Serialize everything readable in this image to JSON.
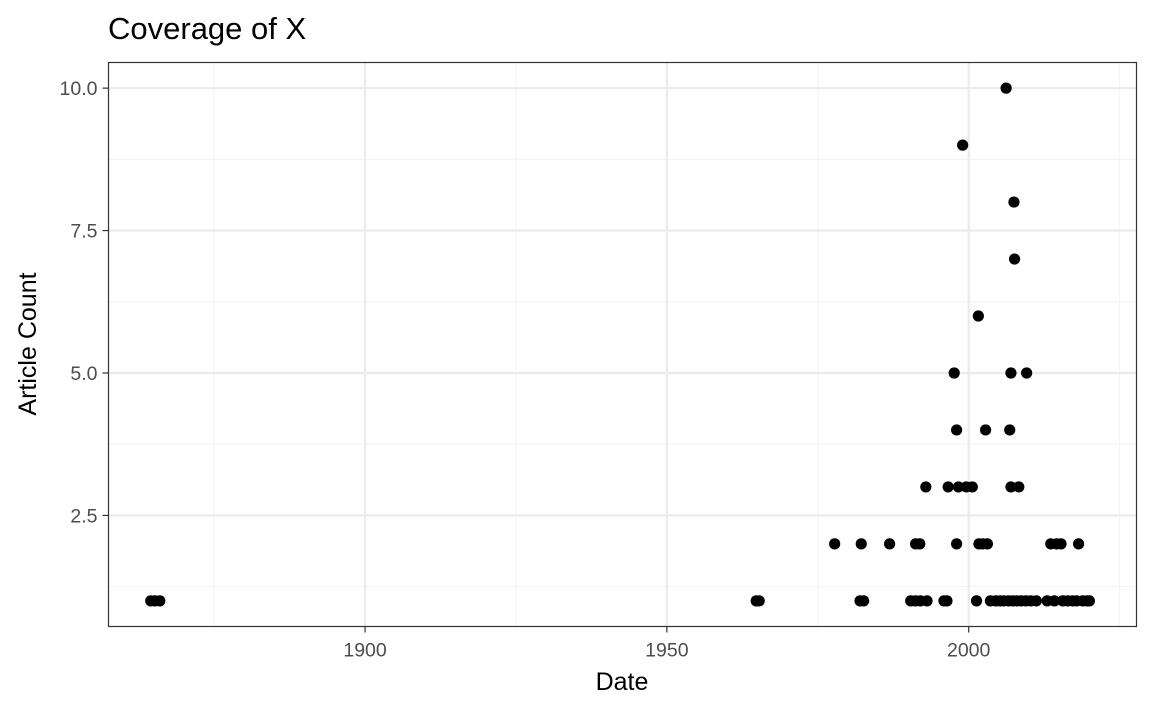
{
  "chart_data": {
    "type": "scatter",
    "title": "Coverage of X",
    "xlabel": "Date",
    "ylabel": "Article Count",
    "x_ticks": [
      1900,
      1950,
      2000
    ],
    "x_tick_labels": [
      "1900",
      "1950",
      "2000"
    ],
    "y_ticks": [
      2.5,
      5.0,
      7.5,
      10.0
    ],
    "y_tick_labels": [
      "2.5",
      "5.0",
      "7.5",
      "10.0"
    ],
    "xlim": [
      1857.5,
      2027.8
    ],
    "ylim": [
      0.55,
      10.45
    ],
    "grid": true,
    "legend": "none",
    "theme": "bw",
    "colors": {
      "point": "#000000",
      "grid_major": "#ebebeb",
      "grid_minor": "#f3f3f3",
      "panel_border": "#333333",
      "tick_text": "#4d4d4d"
    },
    "points": [
      {
        "x": 1864.5,
        "y": 1
      },
      {
        "x": 1865.2,
        "y": 1
      },
      {
        "x": 1866.0,
        "y": 1
      },
      {
        "x": 1964.8,
        "y": 1
      },
      {
        "x": 1965.3,
        "y": 1
      },
      {
        "x": 1977.8,
        "y": 2
      },
      {
        "x": 1982.2,
        "y": 2
      },
      {
        "x": 1982.0,
        "y": 1
      },
      {
        "x": 1982.6,
        "y": 1
      },
      {
        "x": 1986.9,
        "y": 2
      },
      {
        "x": 1990.4,
        "y": 1
      },
      {
        "x": 1991.2,
        "y": 1
      },
      {
        "x": 1991.2,
        "y": 2
      },
      {
        "x": 1991.9,
        "y": 2
      },
      {
        "x": 1992.0,
        "y": 1
      },
      {
        "x": 1992.9,
        "y": 3
      },
      {
        "x": 1993.1,
        "y": 1
      },
      {
        "x": 1995.9,
        "y": 1
      },
      {
        "x": 1996.4,
        "y": 1
      },
      {
        "x": 1996.6,
        "y": 3
      },
      {
        "x": 1997.6,
        "y": 5
      },
      {
        "x": 1998.0,
        "y": 4
      },
      {
        "x": 1998.0,
        "y": 2
      },
      {
        "x": 1998.3,
        "y": 3
      },
      {
        "x": 1999.0,
        "y": 9
      },
      {
        "x": 1999.6,
        "y": 3
      },
      {
        "x": 2000.6,
        "y": 3
      },
      {
        "x": 2001.3,
        "y": 1
      },
      {
        "x": 2001.6,
        "y": 6
      },
      {
        "x": 2001.7,
        "y": 2
      },
      {
        "x": 2002.3,
        "y": 2
      },
      {
        "x": 2002.8,
        "y": 4
      },
      {
        "x": 2003.1,
        "y": 2
      },
      {
        "x": 2003.6,
        "y": 1
      },
      {
        "x": 2004.5,
        "y": 1
      },
      {
        "x": 2005.2,
        "y": 1
      },
      {
        "x": 2005.8,
        "y": 1
      },
      {
        "x": 2006.2,
        "y": 10
      },
      {
        "x": 2006.6,
        "y": 1
      },
      {
        "x": 2006.8,
        "y": 4
      },
      {
        "x": 2007.0,
        "y": 5
      },
      {
        "x": 2007.0,
        "y": 3
      },
      {
        "x": 2007.3,
        "y": 1
      },
      {
        "x": 2007.5,
        "y": 8
      },
      {
        "x": 2007.6,
        "y": 7
      },
      {
        "x": 2008.0,
        "y": 1
      },
      {
        "x": 2008.3,
        "y": 3
      },
      {
        "x": 2008.7,
        "y": 1
      },
      {
        "x": 2009.5,
        "y": 1
      },
      {
        "x": 2009.6,
        "y": 5
      },
      {
        "x": 2010.3,
        "y": 1
      },
      {
        "x": 2011.2,
        "y": 1
      },
      {
        "x": 2013.0,
        "y": 1
      },
      {
        "x": 2013.6,
        "y": 2
      },
      {
        "x": 2014.2,
        "y": 1
      },
      {
        "x": 2014.6,
        "y": 2
      },
      {
        "x": 2015.3,
        "y": 2
      },
      {
        "x": 2015.6,
        "y": 1
      },
      {
        "x": 2016.4,
        "y": 1
      },
      {
        "x": 2017.2,
        "y": 1
      },
      {
        "x": 2017.9,
        "y": 1
      },
      {
        "x": 2018.2,
        "y": 2
      },
      {
        "x": 2018.9,
        "y": 1
      },
      {
        "x": 2019.6,
        "y": 1
      },
      {
        "x": 2020.0,
        "y": 1
      }
    ]
  }
}
